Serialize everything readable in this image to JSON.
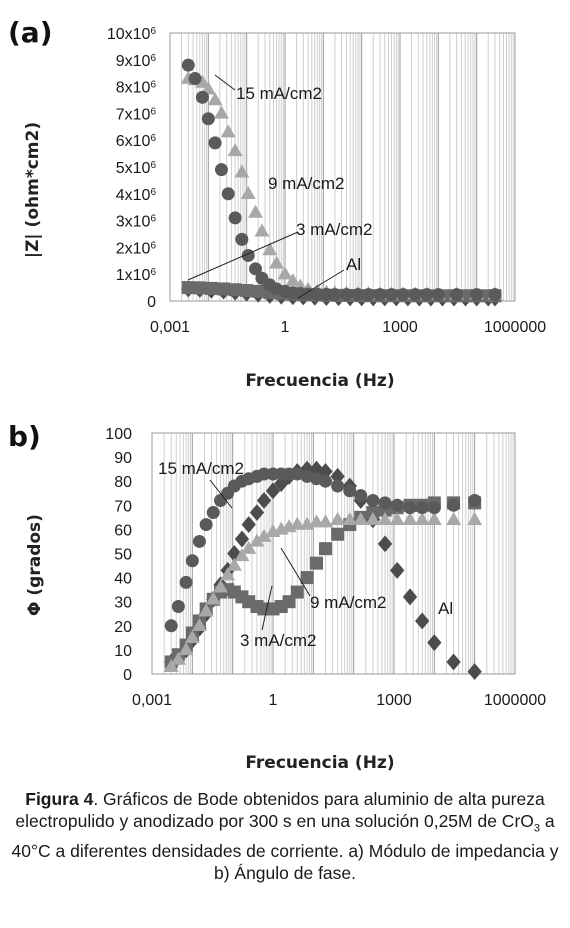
{
  "chart_data": [
    {
      "panel_label": "(a)",
      "type": "scatter",
      "xscale": "log",
      "xlabel": "Frecuencia (Hz)",
      "ylabel": "|Z| (ohm*cm2)",
      "xlim": [
        0.001,
        1000000
      ],
      "ylim": [
        0,
        10000000
      ],
      "xtick_labels": [
        "0,001",
        "1",
        "1000",
        "1000000"
      ],
      "ytick_labels": [
        {
          "base": "0",
          "exp": ""
        },
        {
          "base": "1x10",
          "exp": "6"
        },
        {
          "base": "2x10",
          "exp": "6"
        },
        {
          "base": "3x10",
          "exp": "6"
        },
        {
          "base": "4x10",
          "exp": "6"
        },
        {
          "base": "5x10",
          "exp": "6"
        },
        {
          "base": "6x10",
          "exp": "6"
        },
        {
          "base": "7x10",
          "exp": "6"
        },
        {
          "base": "8x10",
          "exp": "6"
        },
        {
          "base": "9x10",
          "exp": "6"
        },
        {
          "base": "10x10",
          "exp": "6"
        }
      ],
      "grid": "vertical",
      "series": [
        {
          "name": "15 mA/cm2",
          "marker": "circle",
          "color": "#5a5a5a",
          "x": [
            0.003,
            0.0045,
            0.007,
            0.01,
            0.015,
            0.022,
            0.033,
            0.05,
            0.075,
            0.11,
            0.17,
            0.25,
            0.4,
            0.6,
            1,
            1.6,
            2.5,
            4,
            7,
            12,
            20,
            40,
            80,
            150,
            300,
            600,
            1200,
            2500,
            5000,
            10000,
            30000,
            100000,
            300000
          ],
          "y": [
            8800000,
            8300000,
            7600000,
            6800000,
            5900000,
            4900000,
            4000000,
            3100000,
            2300000,
            1700000,
            1200000,
            850000,
            600000,
            450000,
            360000,
            310000,
            280000,
            260000,
            250000,
            245000,
            240000,
            240000,
            240000,
            240000,
            240000,
            240000,
            240000,
            240000,
            240000,
            240000,
            240000,
            240000,
            240000
          ]
        },
        {
          "name": "9 mA/cm2",
          "marker": "triangle",
          "color": "#a8a8a8",
          "x": [
            0.003,
            0.0045,
            0.007,
            0.01,
            0.015,
            0.022,
            0.033,
            0.05,
            0.075,
            0.11,
            0.17,
            0.25,
            0.4,
            0.6,
            1,
            1.6,
            2.5,
            4,
            7,
            12,
            20,
            40,
            80,
            150,
            300,
            600,
            1200,
            2500,
            5000,
            10000,
            30000,
            100000,
            300000
          ],
          "y": [
            8300000,
            8250000,
            8150000,
            7900000,
            7500000,
            7000000,
            6300000,
            5600000,
            4800000,
            4000000,
            3300000,
            2600000,
            1900000,
            1400000,
            1000000,
            750000,
            550000,
            430000,
            360000,
            320000,
            300000,
            290000,
            280000,
            270000,
            265000,
            260000,
            255000,
            250000,
            250000,
            250000,
            250000,
            250000,
            250000
          ]
        },
        {
          "name": "3 mA/cm2",
          "marker": "square",
          "color": "#6a6a6a",
          "x": [
            0.003,
            0.006,
            0.012,
            0.025,
            0.05,
            0.1,
            0.2,
            0.4,
            0.8,
            1.6,
            3,
            6,
            12,
            25,
            50,
            100,
            200,
            400,
            800,
            1600,
            3200,
            6400,
            12800,
            25600,
            51200,
            100000,
            200000,
            300000
          ],
          "y": [
            500000,
            490000,
            470000,
            450000,
            420000,
            390000,
            360000,
            320000,
            290000,
            260000,
            240000,
            225000,
            215000,
            210000,
            205000,
            200000,
            200000,
            198000,
            197000,
            196000,
            195000,
            195000,
            195000,
            195000,
            195000,
            195000,
            195000,
            195000
          ]
        },
        {
          "name": "Al",
          "marker": "diamond",
          "color": "#4c4c4c",
          "x": [
            0.003,
            0.006,
            0.012,
            0.025,
            0.05,
            0.1,
            0.2,
            0.4,
            0.8,
            1.6,
            3,
            6,
            12,
            25,
            50,
            100,
            200,
            400,
            800,
            1600,
            3200,
            6400,
            12800,
            25600,
            51200,
            100000,
            200000,
            300000
          ],
          "y": [
            450000,
            430000,
            400000,
            370000,
            330000,
            290000,
            250000,
            210000,
            180000,
            160000,
            150000,
            140000,
            130000,
            125000,
            120000,
            118000,
            116000,
            115000,
            114000,
            113000,
            112000,
            112000,
            112000,
            112000,
            112000,
            112000,
            112000,
            112000
          ]
        }
      ]
    },
    {
      "panel_label": "b)",
      "type": "scatter",
      "xscale": "log",
      "xlabel": "Frecuencia (Hz)",
      "ylabel": "Φ (grados)",
      "xlim": [
        0.001,
        1000000
      ],
      "ylim": [
        0,
        100
      ],
      "xtick_labels": [
        "0,001",
        "1",
        "1000",
        "1000000"
      ],
      "ytick_labels": [
        "0",
        "10",
        "20",
        "30",
        "40",
        "50",
        "60",
        "70",
        "80",
        "90",
        "100"
      ],
      "grid": "vertical",
      "series": [
        {
          "name": "15 mA/cm2",
          "marker": "circle",
          "color": "#5a5a5a",
          "x": [
            0.003,
            0.0045,
            0.007,
            0.01,
            0.015,
            0.022,
            0.033,
            0.05,
            0.075,
            0.11,
            0.17,
            0.25,
            0.4,
            0.6,
            1,
            1.6,
            2.5,
            4,
            7,
            12,
            20,
            40,
            80,
            150,
            300,
            600,
            1200,
            2500,
            5000,
            10000,
            30000,
            100000
          ],
          "y": [
            20,
            28,
            38,
            47,
            55,
            62,
            67,
            72,
            75,
            78,
            80,
            81,
            82,
            83,
            83,
            83,
            83,
            83,
            82,
            81,
            80,
            78,
            76,
            74,
            72,
            71,
            70,
            69,
            69,
            69,
            70,
            72
          ]
        },
        {
          "name": "9 mA/cm2",
          "marker": "triangle",
          "color": "#a8a8a8",
          "x": [
            0.003,
            0.0045,
            0.007,
            0.01,
            0.015,
            0.022,
            0.033,
            0.05,
            0.075,
            0.11,
            0.17,
            0.25,
            0.4,
            0.6,
            1,
            1.6,
            2.5,
            4,
            7,
            12,
            20,
            40,
            80,
            150,
            300,
            600,
            1200,
            2500,
            5000,
            10000,
            30000,
            100000
          ],
          "y": [
            3,
            6,
            10,
            15,
            20,
            26,
            31,
            36,
            41,
            45,
            49,
            52,
            55,
            57,
            59,
            60,
            61,
            62,
            62,
            63,
            63,
            64,
            64,
            64,
            64,
            64,
            64,
            64,
            64,
            64,
            64,
            64
          ]
        },
        {
          "name": "3 mA/cm2",
          "marker": "square",
          "color": "#6a6a6a",
          "x": [
            0.003,
            0.0045,
            0.007,
            0.01,
            0.015,
            0.022,
            0.033,
            0.05,
            0.075,
            0.11,
            0.17,
            0.25,
            0.4,
            0.6,
            1,
            1.6,
            2.5,
            4,
            7,
            12,
            20,
            40,
            80,
            150,
            300,
            600,
            1200,
            2500,
            5000,
            10000,
            30000,
            100000
          ],
          "y": [
            5,
            8,
            12,
            17,
            22,
            27,
            31,
            34,
            35,
            34,
            32,
            30,
            28,
            27,
            27,
            28,
            30,
            34,
            40,
            46,
            52,
            58,
            62,
            65,
            67,
            68,
            69,
            70,
            70,
            71,
            71,
            71
          ]
        },
        {
          "name": "Al",
          "marker": "diamond",
          "color": "#4c4c4c",
          "x": [
            0.003,
            0.0045,
            0.007,
            0.01,
            0.015,
            0.022,
            0.033,
            0.05,
            0.075,
            0.11,
            0.17,
            0.25,
            0.4,
            0.6,
            1,
            1.6,
            2.5,
            4,
            7,
            12,
            20,
            40,
            80,
            150,
            300,
            600,
            1200,
            2500,
            5000,
            10000,
            30000,
            100000
          ],
          "y": [
            5,
            7,
            10,
            14,
            19,
            25,
            31,
            37,
            43,
            50,
            56,
            62,
            67,
            72,
            76,
            79,
            82,
            84,
            85,
            85,
            84,
            82,
            78,
            72,
            64,
            54,
            43,
            32,
            22,
            13,
            5,
            1
          ]
        }
      ]
    }
  ],
  "annotations_a": [
    "15 mA/cm2",
    "9 mA/cm2",
    "3 mA/cm2",
    "Al"
  ],
  "annotations_b": [
    "15 mA/cm2",
    "9 mA/cm2",
    "3 mA/cm2",
    "Al"
  ],
  "caption": {
    "bold": "Figura 4",
    "text1": ". Gráficos de Bode obtenidos para aluminio de alta pureza electropulido y anodizado por 300 s en una solución 0,25M de CrO",
    "sub": "3",
    "text2": " a 40°C a  diferentes densidades de corriente. a) Módulo de impedancia y b) Ángulo de fase."
  }
}
